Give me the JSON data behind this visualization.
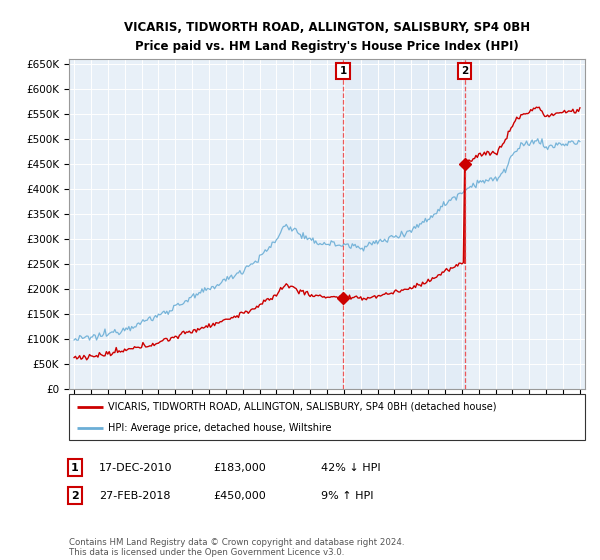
{
  "title": "VICARIS, TIDWORTH ROAD, ALLINGTON, SALISBURY, SP4 0BH",
  "subtitle": "Price paid vs. HM Land Registry's House Price Index (HPI)",
  "ylim": [
    0,
    660000
  ],
  "yticks": [
    0,
    50000,
    100000,
    150000,
    200000,
    250000,
    300000,
    350000,
    400000,
    450000,
    500000,
    550000,
    600000,
    650000
  ],
  "x_start_year": 1995,
  "x_end_year": 2025,
  "hpi_color": "#6baed6",
  "price_color": "#cc0000",
  "dashed_line_color": "#ee3333",
  "shade_color": "#dce9f5",
  "background_color": "#e8f0f8",
  "plot_bg_color": "#e8f0f8",
  "legend_label_price": "VICARIS, TIDWORTH ROAD, ALLINGTON, SALISBURY, SP4 0BH (detached house)",
  "legend_label_hpi": "HPI: Average price, detached house, Wiltshire",
  "sale1_label": "1",
  "sale1_date": "17-DEC-2010",
  "sale1_price": "£183,000",
  "sale1_hpi": "42% ↓ HPI",
  "sale1_year": 2010.96,
  "sale1_value": 183000,
  "sale2_label": "2",
  "sale2_date": "27-FEB-2018",
  "sale2_price": "£450,000",
  "sale2_hpi": "9% ↑ HPI",
  "sale2_year": 2018.16,
  "sale2_value": 450000,
  "footnote": "Contains HM Land Registry data © Crown copyright and database right 2024.\nThis data is licensed under the Open Government Licence v3.0."
}
